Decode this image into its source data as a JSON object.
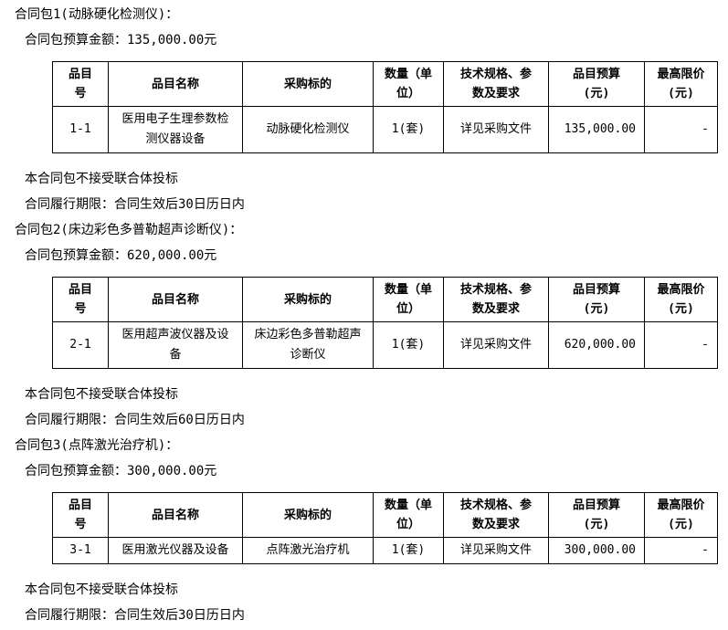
{
  "colors": {
    "text": "#000000",
    "border": "#000000",
    "background": "#ffffff"
  },
  "table_headers": [
    "品目\n号",
    "品目名称",
    "采购标的",
    "数量（单\n位）",
    "技术规格、参\n数及要求",
    "品目预算\n(元)",
    "最高限价\n(元)"
  ],
  "sections": [
    {
      "title": "合同包1(动脉硬化检测仪)：",
      "budget_line": "合同包预算金额：135,000.00元",
      "row": {
        "item_no": "1-1",
        "item_name": "医用电子生理参数检\n测仪器设备",
        "procurement_target": "动脉硬化检测仪",
        "quantity": "1(套)",
        "tech_spec": "详见采购文件",
        "item_budget": "135,000.00",
        "max_price": "-"
      },
      "notes": [
        "本合同包不接受联合体投标",
        "合同履行期限：合同生效后30日历日内"
      ]
    },
    {
      "title": "合同包2(床边彩色多普勒超声诊断仪)：",
      "budget_line": "合同包预算金额：620,000.00元",
      "row": {
        "item_no": "2-1",
        "item_name": "医用超声波仪器及设\n备",
        "procurement_target": "床边彩色多普勒超声\n诊断仪",
        "quantity": "1(套)",
        "tech_spec": "详见采购文件",
        "item_budget": "620,000.00",
        "max_price": "-"
      },
      "notes": [
        "本合同包不接受联合体投标",
        "合同履行期限：合同生效后60日历日内"
      ]
    },
    {
      "title": "合同包3(点阵激光治疗机)：",
      "budget_line": "合同包预算金额：300,000.00元",
      "row": {
        "item_no": "3-1",
        "item_name": "医用激光仪器及设备",
        "procurement_target": "点阵激光治疗机",
        "quantity": "1(套)",
        "tech_spec": "详见采购文件",
        "item_budget": "300,000.00",
        "max_price": "-"
      },
      "notes": [
        "本合同包不接受联合体投标",
        "合同履行期限：合同生效后30日历日内"
      ]
    }
  ]
}
